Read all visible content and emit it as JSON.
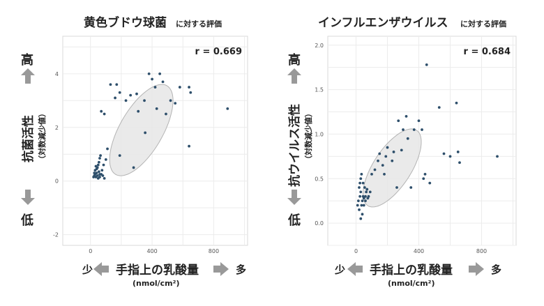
{
  "chart_data": [
    {
      "type": "scatter",
      "title": "黄色ブドウ球菌",
      "title_suffix": "に対する評価",
      "xlabel": "手指上の乳酸量",
      "xunit": "(nmol/cm²)",
      "ylabel": "抗菌活性",
      "ylabel_sub": "（対数減少値）",
      "y_high_label": "高",
      "y_low_label": "低",
      "x_low_label": "少",
      "x_high_label": "多",
      "annotation": "r = 0.669",
      "xlim": [
        -180,
        1020
      ],
      "ylim": [
        -2.4,
        5.4
      ],
      "xticks": [
        0,
        400,
        800
      ],
      "yticks": [
        -2,
        0,
        2,
        4
      ],
      "ellipse": {
        "cx": 330,
        "cy": 1.9,
        "rx": 760,
        "ry": 1.8,
        "angle": 60
      },
      "colors": {
        "point": "#2e4f6b",
        "ellipse_fill": "#e6e6e6",
        "ellipse_stroke": "#b3b3b3",
        "arrow": "#999999"
      },
      "points": [
        [
          20,
          0.15
        ],
        [
          25,
          0.2
        ],
        [
          30,
          0.25
        ],
        [
          35,
          0.15
        ],
        [
          40,
          0.3
        ],
        [
          45,
          0.2
        ],
        [
          50,
          0.1
        ],
        [
          55,
          0.35
        ],
        [
          60,
          0.15
        ],
        [
          30,
          0.4
        ],
        [
          40,
          0.45
        ],
        [
          45,
          0.5
        ],
        [
          50,
          0.6
        ],
        [
          55,
          0.7
        ],
        [
          60,
          0.85
        ],
        [
          65,
          0.95
        ],
        [
          70,
          0.25
        ],
        [
          80,
          0.2
        ],
        [
          90,
          0.1
        ],
        [
          35,
          0.55
        ],
        [
          25,
          0.3
        ],
        [
          75,
          0.4
        ],
        [
          60,
          0.25
        ],
        [
          85,
          0.6
        ],
        [
          100,
          0.8
        ],
        [
          110,
          1.2
        ],
        [
          190,
          0.95
        ],
        [
          280,
          0.5
        ],
        [
          70,
          2.6
        ],
        [
          90,
          2.5
        ],
        [
          130,
          3.6
        ],
        [
          160,
          3.1
        ],
        [
          170,
          3.6
        ],
        [
          190,
          3.3
        ],
        [
          230,
          3.0
        ],
        [
          260,
          3.2
        ],
        [
          300,
          3.25
        ],
        [
          310,
          2.6
        ],
        [
          350,
          3.0
        ],
        [
          380,
          4.0
        ],
        [
          400,
          3.8
        ],
        [
          420,
          3.5
        ],
        [
          430,
          2.7
        ],
        [
          450,
          4.0
        ],
        [
          470,
          3.7
        ],
        [
          490,
          2.5
        ],
        [
          520,
          3.0
        ],
        [
          550,
          2.9
        ],
        [
          580,
          3.5
        ],
        [
          640,
          3.5
        ],
        [
          650,
          3.3
        ],
        [
          640,
          1.3
        ],
        [
          890,
          2.7
        ],
        [
          355,
          1.8
        ]
      ]
    },
    {
      "type": "scatter",
      "title": "インフルエンザウイルス",
      "title_suffix": "に対する評価",
      "xlabel": "手指上の乳酸量",
      "xunit": "(nmol/cm²)",
      "ylabel": "抗ウイルス活性",
      "ylabel_sub": "（対数減少値）",
      "y_high_label": "高",
      "y_low_label": "低",
      "x_low_label": "少",
      "x_high_label": "多",
      "annotation": "r = 0.684",
      "xlim": [
        -180,
        1020
      ],
      "ylim": [
        -0.25,
        2.1
      ],
      "xticks": [
        0,
        400,
        800
      ],
      "yticks": [
        0.0,
        0.5,
        1.0,
        1.5,
        2.0
      ],
      "ellipse": {
        "cx": 230,
        "cy": 0.62,
        "rx": 640,
        "ry": 0.5,
        "angle": 57
      },
      "colors": {
        "point": "#2e4f6b",
        "ellipse_fill": "#e6e6e6",
        "ellipse_stroke": "#b3b3b3",
        "arrow": "#999999"
      },
      "points": [
        [
          10,
          0.2
        ],
        [
          15,
          0.25
        ],
        [
          20,
          0.15
        ],
        [
          25,
          0.3
        ],
        [
          30,
          0.35
        ],
        [
          35,
          0.2
        ],
        [
          40,
          0.25
        ],
        [
          45,
          0.3
        ],
        [
          50,
          0.28
        ],
        [
          55,
          0.4
        ],
        [
          60,
          0.3
        ],
        [
          65,
          0.35
        ],
        [
          70,
          0.38
        ],
        [
          75,
          0.28
        ],
        [
          80,
          0.3
        ],
        [
          20,
          0.4
        ],
        [
          25,
          0.45
        ],
        [
          30,
          0.5
        ],
        [
          35,
          0.55
        ],
        [
          40,
          0.1
        ],
        [
          30,
          0.05
        ],
        [
          50,
          0.2
        ],
        [
          60,
          0.25
        ],
        [
          45,
          0.45
        ],
        [
          90,
          0.35
        ],
        [
          100,
          0.55
        ],
        [
          120,
          0.6
        ],
        [
          140,
          0.7
        ],
        [
          150,
          0.78
        ],
        [
          170,
          0.65
        ],
        [
          180,
          0.55
        ],
        [
          190,
          0.75
        ],
        [
          200,
          0.85
        ],
        [
          230,
          0.7
        ],
        [
          240,
          0.8
        ],
        [
          260,
          0.4
        ],
        [
          270,
          1.15
        ],
        [
          290,
          0.82
        ],
        [
          300,
          1.05
        ],
        [
          320,
          1.2
        ],
        [
          330,
          0.95
        ],
        [
          350,
          0.4
        ],
        [
          370,
          1.05
        ],
        [
          400,
          1.15
        ],
        [
          420,
          1.05
        ],
        [
          430,
          0.5
        ],
        [
          440,
          0.55
        ],
        [
          450,
          1.78
        ],
        [
          470,
          0.45
        ],
        [
          530,
          1.3
        ],
        [
          560,
          0.78
        ],
        [
          600,
          0.75
        ],
        [
          640,
          1.35
        ],
        [
          650,
          0.8
        ],
        [
          660,
          0.68
        ],
        [
          900,
          0.75
        ]
      ]
    }
  ]
}
